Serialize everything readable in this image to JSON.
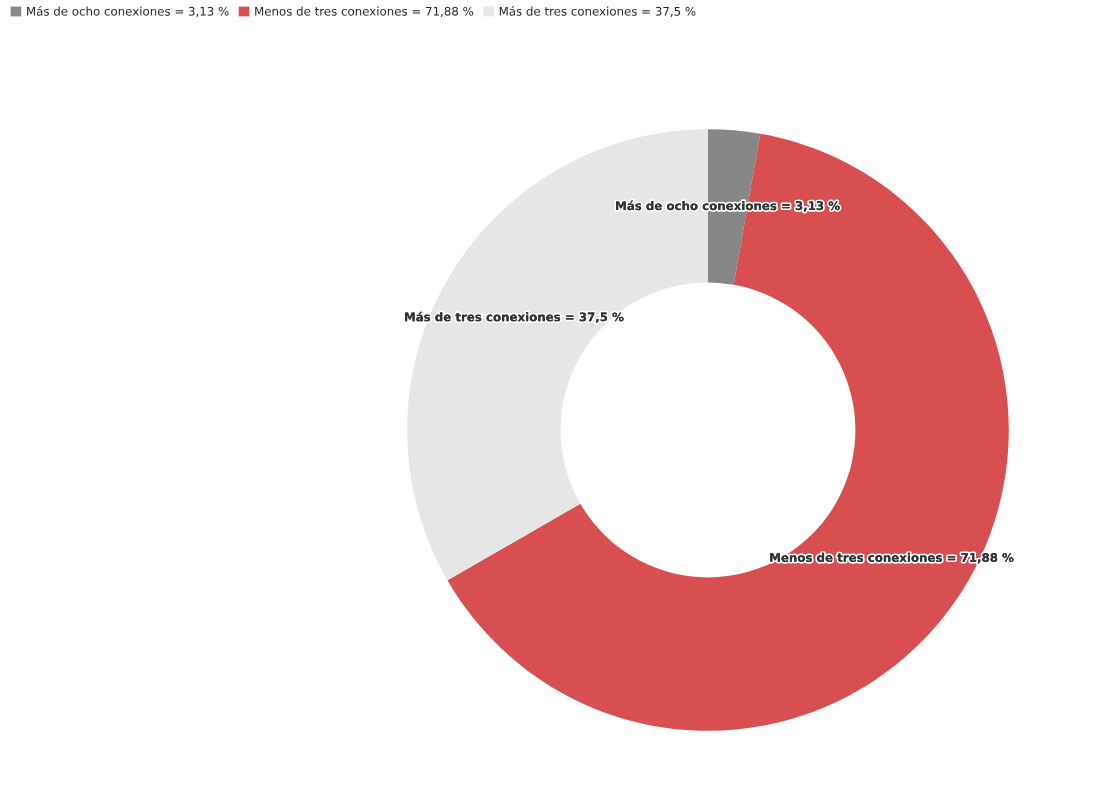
{
  "chart_data": {
    "type": "donut",
    "categories": [
      "Más de ocho conexiones = 3,13 %",
      "Menos de tres conexiones = 71,88 %",
      "Más de tres conexiones = 37,5 %"
    ],
    "values": [
      3.13,
      71.88,
      37.5
    ],
    "colors": [
      "#878787",
      "#d84f52",
      "#e6e6e6"
    ],
    "value_labels": [
      "Más de ocho conexiones = 3,13 %",
      "Menos de tres conexiones = 71,88 %",
      "Más de tres conexiones = 37,5 %"
    ],
    "legend": "top left"
  }
}
